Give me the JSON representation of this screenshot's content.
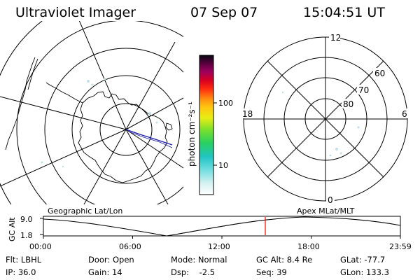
{
  "header": {
    "instrument": "Ultraviolet Imager",
    "date": "07 Sep 07",
    "time": "15:04:51 UT"
  },
  "colorbar": {
    "unit": "photon cm⁻²s⁻¹",
    "tick_labels": [
      "100",
      "10"
    ]
  },
  "polar_plot": {
    "mlt_labels": {
      "top": "12",
      "left": "18",
      "right": "6",
      "bottom": "0"
    },
    "lat_labels": [
      "60",
      "70",
      "80"
    ]
  },
  "panel_labels": {
    "left": "Geographic Lat/Lon",
    "right": "Apex MLat/MLT"
  },
  "altitude_plot": {
    "axis_title": "GC Alt",
    "y_ticks": [
      "9.0",
      "1.8"
    ],
    "x_ticks": [
      "00:00",
      "06:00",
      "12:00",
      "18:00",
      "23:59"
    ],
    "trace_color": "#000000",
    "marker_color": "#ff0000"
  },
  "status": {
    "flt": "Flt: LBHL",
    "ip": "IP: 36.0",
    "door": "Door: Open",
    "gain": "Gain: 14",
    "mode": "Mode: Normal",
    "dsp": "Dsp:    -2.5",
    "gc_alt": "GC Alt: 8.4 Re",
    "seq": "Seq: 39",
    "glat": "GLat: -77.7",
    "glon": "GLon: 133.3"
  },
  "colors": {
    "trace_blue": "#1a1aa8",
    "faint_emission": "#bfe0e6"
  }
}
